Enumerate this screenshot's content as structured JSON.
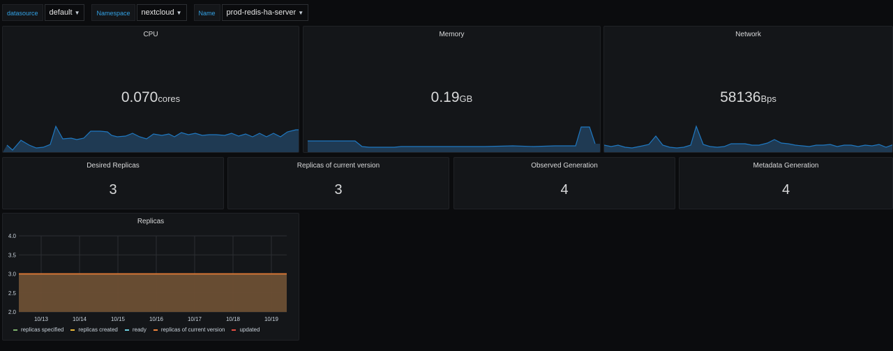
{
  "variables": [
    {
      "label": "datasource",
      "value": "default"
    },
    {
      "label": "Namespace",
      "value": "nextcloud"
    },
    {
      "label": "Name",
      "value": "prod-redis-ha-server"
    }
  ],
  "stats": {
    "cpu": {
      "title": "CPU",
      "value": "0.070",
      "unit": "cores"
    },
    "memory": {
      "title": "Memory",
      "value": "0.19",
      "unit": "GB"
    },
    "network": {
      "title": "Network",
      "value": "58136",
      "unit": "Bps"
    }
  },
  "singlestats": [
    {
      "title": "Desired Replicas",
      "value": "3"
    },
    {
      "title": "Replicas of current version",
      "value": "3"
    },
    {
      "title": "Observed Generation",
      "value": "4"
    },
    {
      "title": "Metadata Generation",
      "value": "4"
    }
  ],
  "colors": {
    "accent": "#33a2e5",
    "spark_line": "#1f78c1",
    "spark_fill": "#1f3a53",
    "replica_fill": "#6b4f34",
    "replica_line": "#e0752d"
  },
  "chart_data": {
    "type": "area",
    "title": "Replicas",
    "x": [
      "10/13",
      "10/14",
      "10/15",
      "10/16",
      "10/17",
      "10/18",
      "10/19"
    ],
    "y_ticks": [
      "4.0",
      "3.5",
      "3.0",
      "2.5",
      "2.0"
    ],
    "ylim": [
      2.0,
      4.0
    ],
    "grid": true,
    "legend_position": "bottom",
    "series": [
      {
        "name": "replicas specified",
        "color": "#7eb26d",
        "values": [
          3,
          3,
          3,
          3,
          3,
          3,
          3
        ]
      },
      {
        "name": "replicas created",
        "color": "#eab839",
        "values": [
          3,
          3,
          3,
          3,
          3,
          3,
          3
        ]
      },
      {
        "name": "ready",
        "color": "#6ed0e0",
        "values": [
          3,
          3,
          3,
          3,
          3,
          3,
          3
        ]
      },
      {
        "name": "replicas of current version",
        "color": "#ef843c",
        "values": [
          3,
          3,
          3,
          3,
          3,
          3,
          3
        ]
      },
      {
        "name": "updated",
        "color": "#e24d42",
        "values": [
          3,
          3,
          3,
          3,
          3,
          3,
          3
        ]
      }
    ]
  }
}
